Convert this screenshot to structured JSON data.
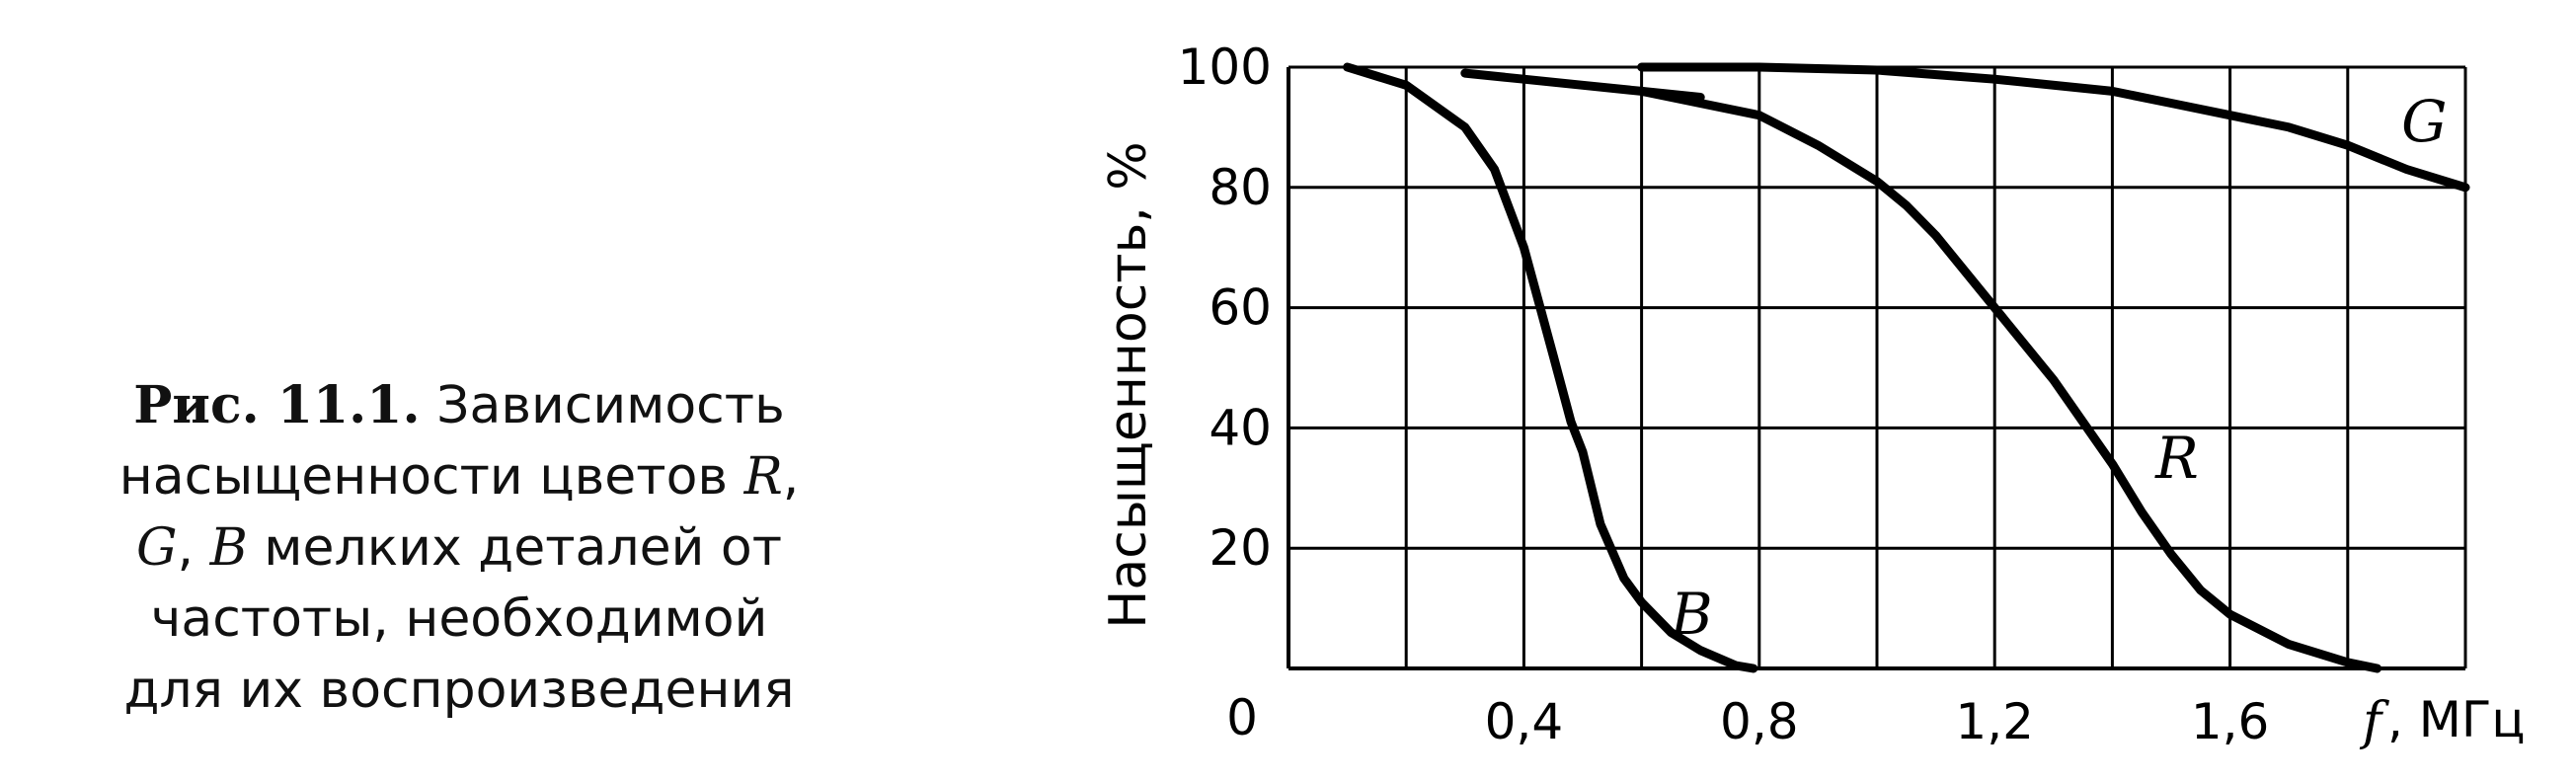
{
  "caption": {
    "fig_label": "Рис. 11.1.",
    "line1": "Зависимость",
    "line2_pre": "насыщенности цветов ",
    "line2_R": "R",
    "line2_post": ",",
    "line3_G": "G",
    "line3_mid": ", ",
    "line3_B": "B",
    "line3_post": " мелких деталей от",
    "line4": "частоты, необходимой",
    "line5": "для их воспроизведения"
  },
  "chart_data": {
    "type": "line",
    "title": "",
    "xlabel_symbol": "f",
    "xlabel_unit": ", МГц",
    "ylabel": "Насыщенность, %",
    "xlim": [
      0,
      2.0
    ],
    "ylim": [
      0,
      100
    ],
    "x_ticks": [
      {
        "value": 0.4,
        "label": "0,4"
      },
      {
        "value": 0.8,
        "label": "0,8"
      },
      {
        "value": 1.2,
        "label": "1,2"
      },
      {
        "value": 1.6,
        "label": "1,6"
      }
    ],
    "origin_label": "0",
    "y_ticks": [
      {
        "value": 20,
        "label": "20"
      },
      {
        "value": 40,
        "label": "40"
      },
      {
        "value": 60,
        "label": "60"
      },
      {
        "value": 80,
        "label": "80"
      },
      {
        "value": 100,
        "label": "100"
      }
    ],
    "grid_x_step": 0.2,
    "grid_y_step": 20,
    "grid": true,
    "series": [
      {
        "name": "B",
        "x": [
          0.1,
          0.2,
          0.3,
          0.35,
          0.4,
          0.45,
          0.48,
          0.5,
          0.53,
          0.57,
          0.6,
          0.65,
          0.7,
          0.76,
          0.79
        ],
        "y": [
          100,
          97,
          90,
          83,
          70,
          52,
          41,
          36,
          24,
          15,
          11,
          6,
          3,
          0.5,
          0
        ]
      },
      {
        "name": "R",
        "x": [
          0.6,
          0.8,
          0.9,
          1.0,
          1.05,
          1.1,
          1.2,
          1.3,
          1.35,
          1.4,
          1.45,
          1.5,
          1.55,
          1.6,
          1.7,
          1.8,
          1.85
        ],
        "y": [
          96,
          92,
          87,
          81,
          77,
          72,
          60,
          48,
          41,
          34,
          26,
          19,
          13,
          9,
          4,
          1,
          0
        ]
      },
      {
        "name": "G",
        "x": [
          0.6,
          0.8,
          1.0,
          1.2,
          1.4,
          1.5,
          1.6,
          1.7,
          1.8,
          1.9,
          2.0
        ],
        "y": [
          100,
          100,
          99.5,
          98,
          96,
          94,
          92,
          90,
          87,
          83,
          80
        ]
      },
      {
        "name": "",
        "x": [
          0.3,
          0.4,
          0.5,
          0.6,
          0.7
        ],
        "y": [
          99,
          98,
          97,
          96,
          95
        ]
      }
    ]
  }
}
